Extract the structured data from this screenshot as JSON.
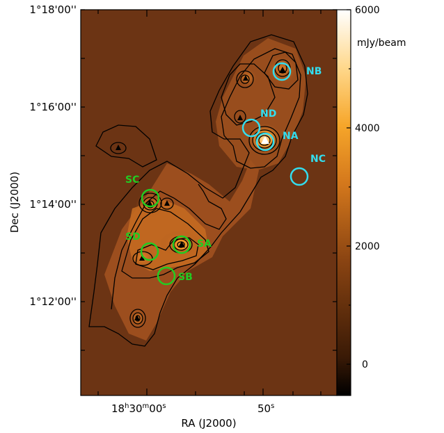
{
  "axes": {
    "xlabel": "RA (J2000)",
    "ylabel": "Dec (J2000)",
    "x_ticks": [
      {
        "label_main": "18",
        "sup1": "h",
        "mid": "30",
        "sup2": "m",
        "tail": "00",
        "sup3": "s"
      },
      {
        "label_main": "50",
        "sup3": "s"
      }
    ],
    "y_ticks": [
      "1°18'00''",
      "1°16'00''",
      "1°14'00''",
      "1°12'00''"
    ]
  },
  "colorbar": {
    "unit": "mJy/beam",
    "ticks": [
      "6000",
      "4000",
      "2000",
      "0"
    ],
    "range": [
      -500,
      6000
    ]
  },
  "sources": {
    "north": [
      "NB",
      "ND",
      "NA",
      "NC"
    ],
    "south": [
      "SC",
      "SD",
      "SA",
      "SB"
    ]
  },
  "colors": {
    "north_marker": "#33ddee",
    "south_marker": "#22cc22",
    "background": "#6e3513",
    "ridge": "#b25c1f"
  }
}
